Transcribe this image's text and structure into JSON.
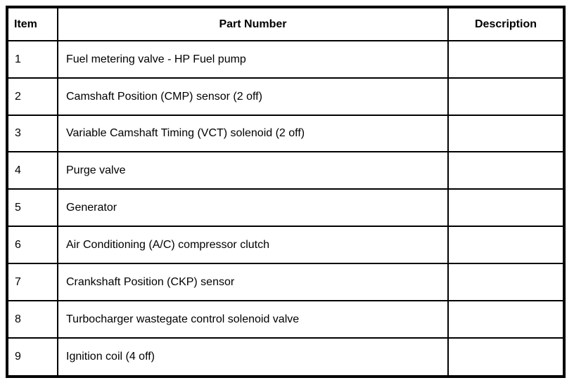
{
  "colors": {
    "border": "#000000",
    "text": "#000000",
    "background": "#ffffff"
  },
  "columns": [
    {
      "label": "Item"
    },
    {
      "label": "Part Number"
    },
    {
      "label": "Description"
    }
  ],
  "rows": [
    {
      "item": "1",
      "part_number": "Fuel metering valve - HP Fuel pump",
      "description": ""
    },
    {
      "item": "2",
      "part_number": "Camshaft Position (CMP) sensor (2 off)",
      "description": ""
    },
    {
      "item": "3",
      "part_number": "Variable Camshaft Timing (VCT) solenoid (2 off)",
      "description": ""
    },
    {
      "item": "4",
      "part_number": "Purge valve",
      "description": ""
    },
    {
      "item": "5",
      "part_number": "Generator",
      "description": ""
    },
    {
      "item": "6",
      "part_number": "Air Conditioning (A/C) compressor clutch",
      "description": ""
    },
    {
      "item": "7",
      "part_number": "Crankshaft Position (CKP) sensor",
      "description": ""
    },
    {
      "item": "8",
      "part_number": "Turbocharger wastegate control solenoid valve",
      "description": ""
    },
    {
      "item": "9",
      "part_number": "Ignition coil (4 off)",
      "description": ""
    }
  ]
}
